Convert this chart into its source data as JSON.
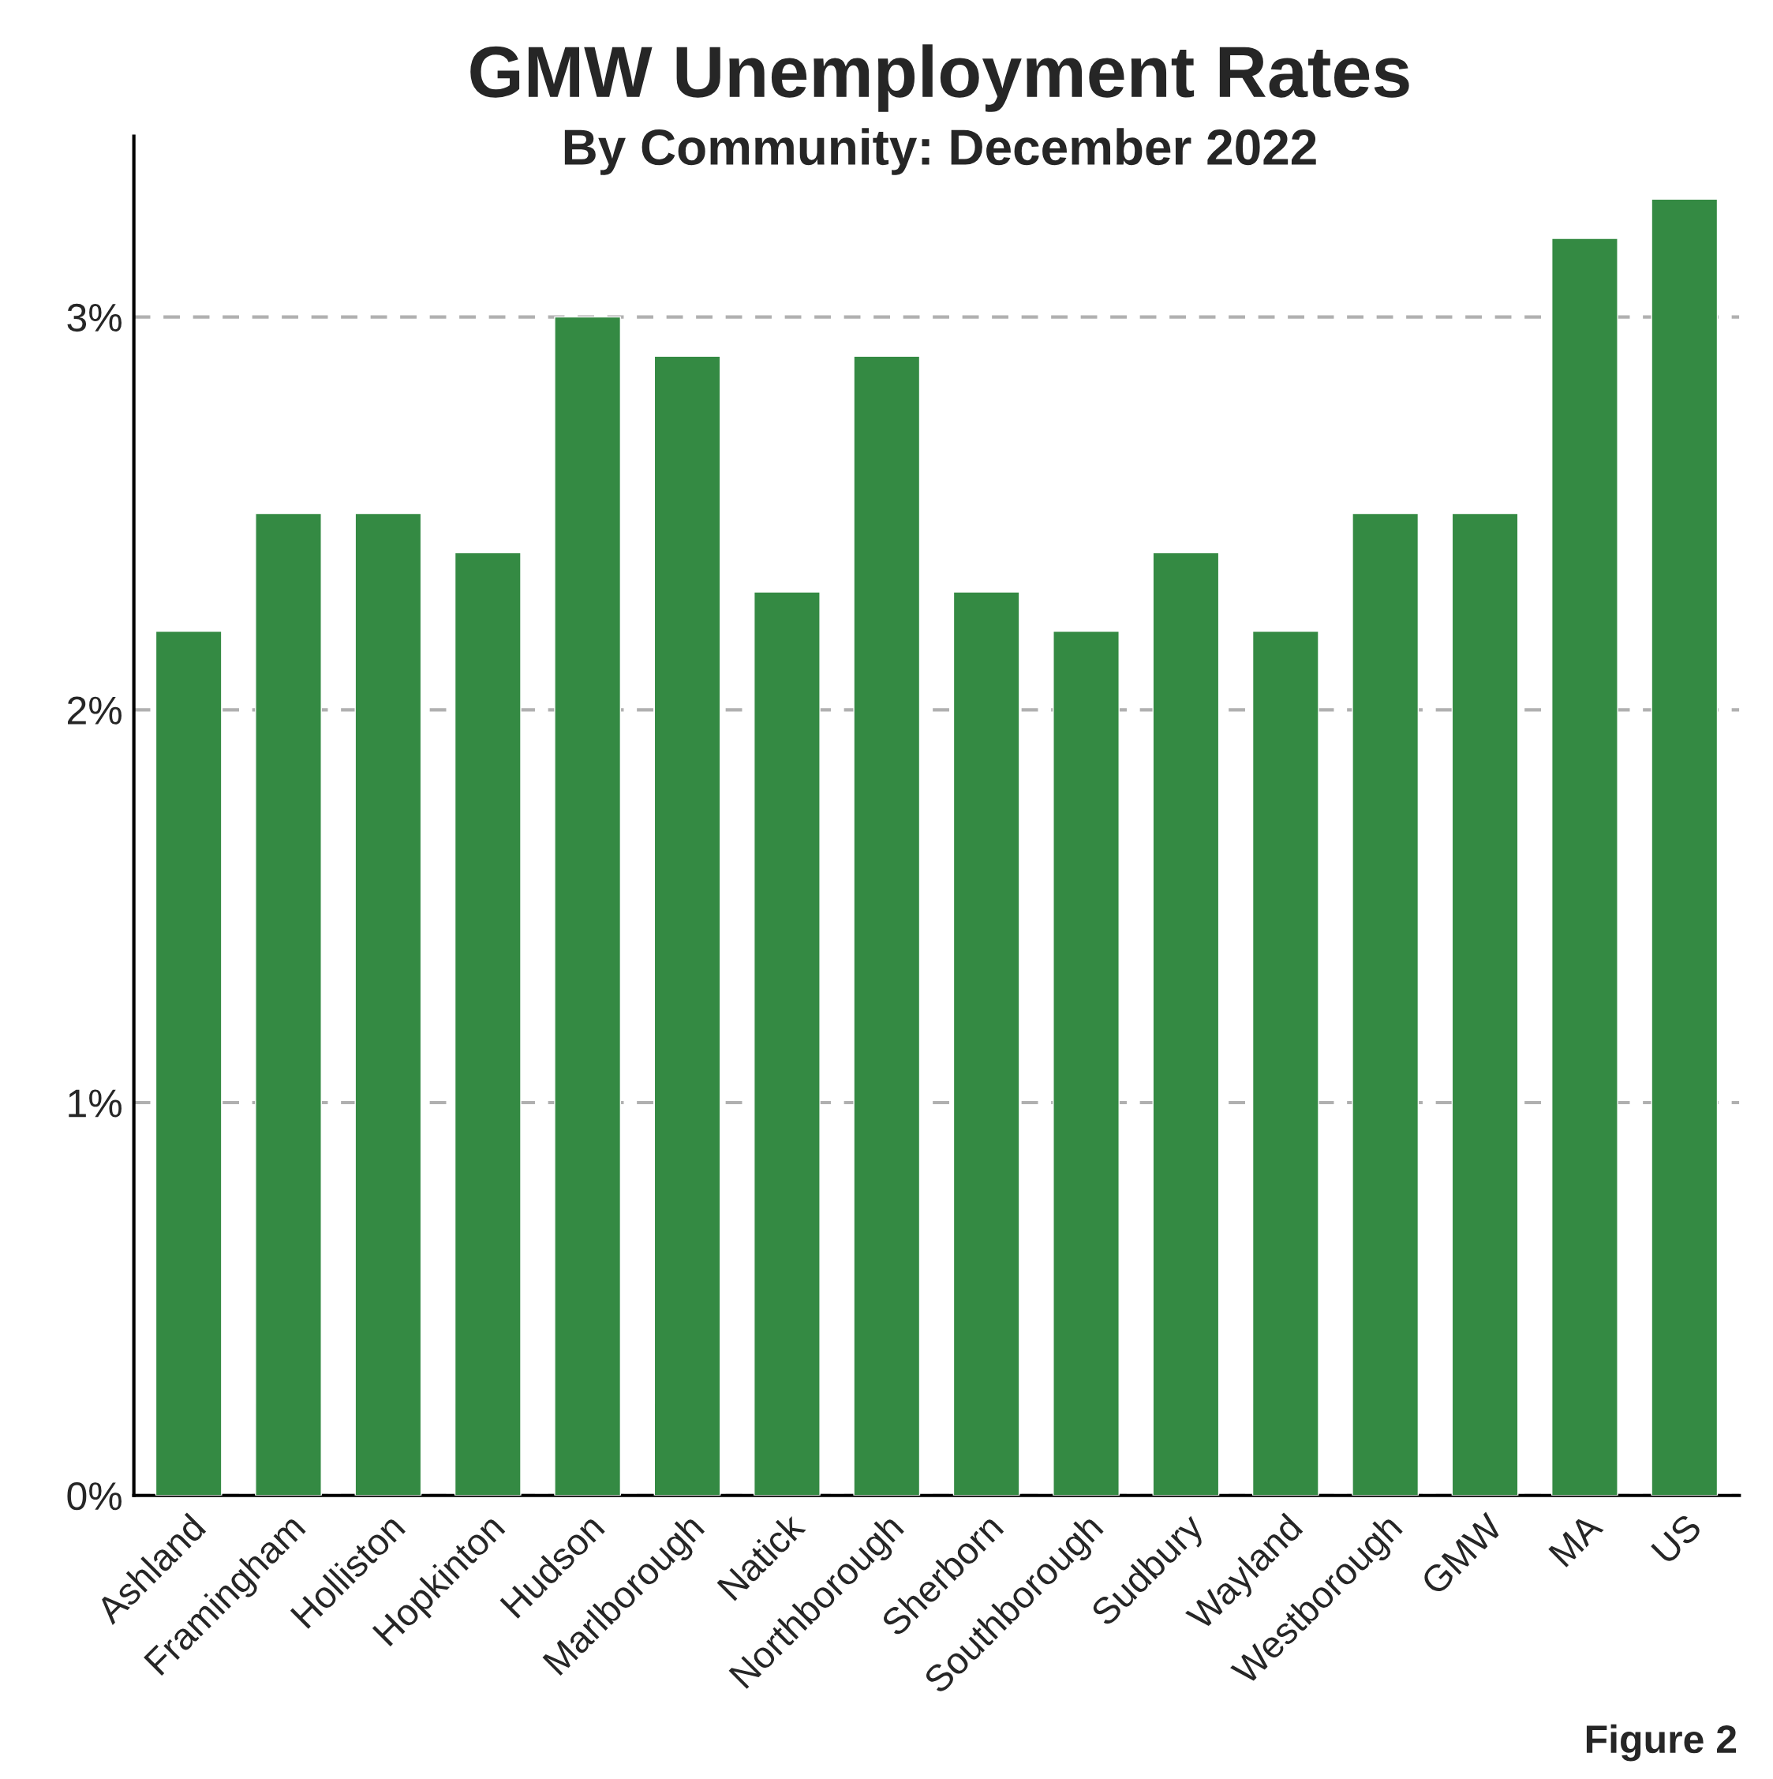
{
  "chart_data": {
    "type": "bar",
    "title": "GMW Unemployment Rates",
    "subtitle": "By Community: December 2022",
    "categories": [
      "Ashland",
      "Framingham",
      "Holliston",
      "Hopkinton",
      "Hudson",
      "Marlborough",
      "Natick",
      "Northborough",
      "Sherborn",
      "Southborough",
      "Sudbury",
      "Wayland",
      "Westborough",
      "GMW",
      "MA",
      "US"
    ],
    "values": [
      2.2,
      2.5,
      2.5,
      2.4,
      3.0,
      2.9,
      2.3,
      2.9,
      2.3,
      2.2,
      2.4,
      2.2,
      2.5,
      2.5,
      3.2,
      3.3
    ],
    "color": "#348a43",
    "ylim": [
      0,
      3.46
    ],
    "yticks": [
      {
        "value": 0,
        "label": "0%"
      },
      {
        "value": 1,
        "label": "1%"
      },
      {
        "value": 2,
        "label": "2%"
      },
      {
        "value": 3,
        "label": "3%"
      }
    ],
    "grid": "y",
    "annotations": [
      "Figure 2"
    ]
  }
}
